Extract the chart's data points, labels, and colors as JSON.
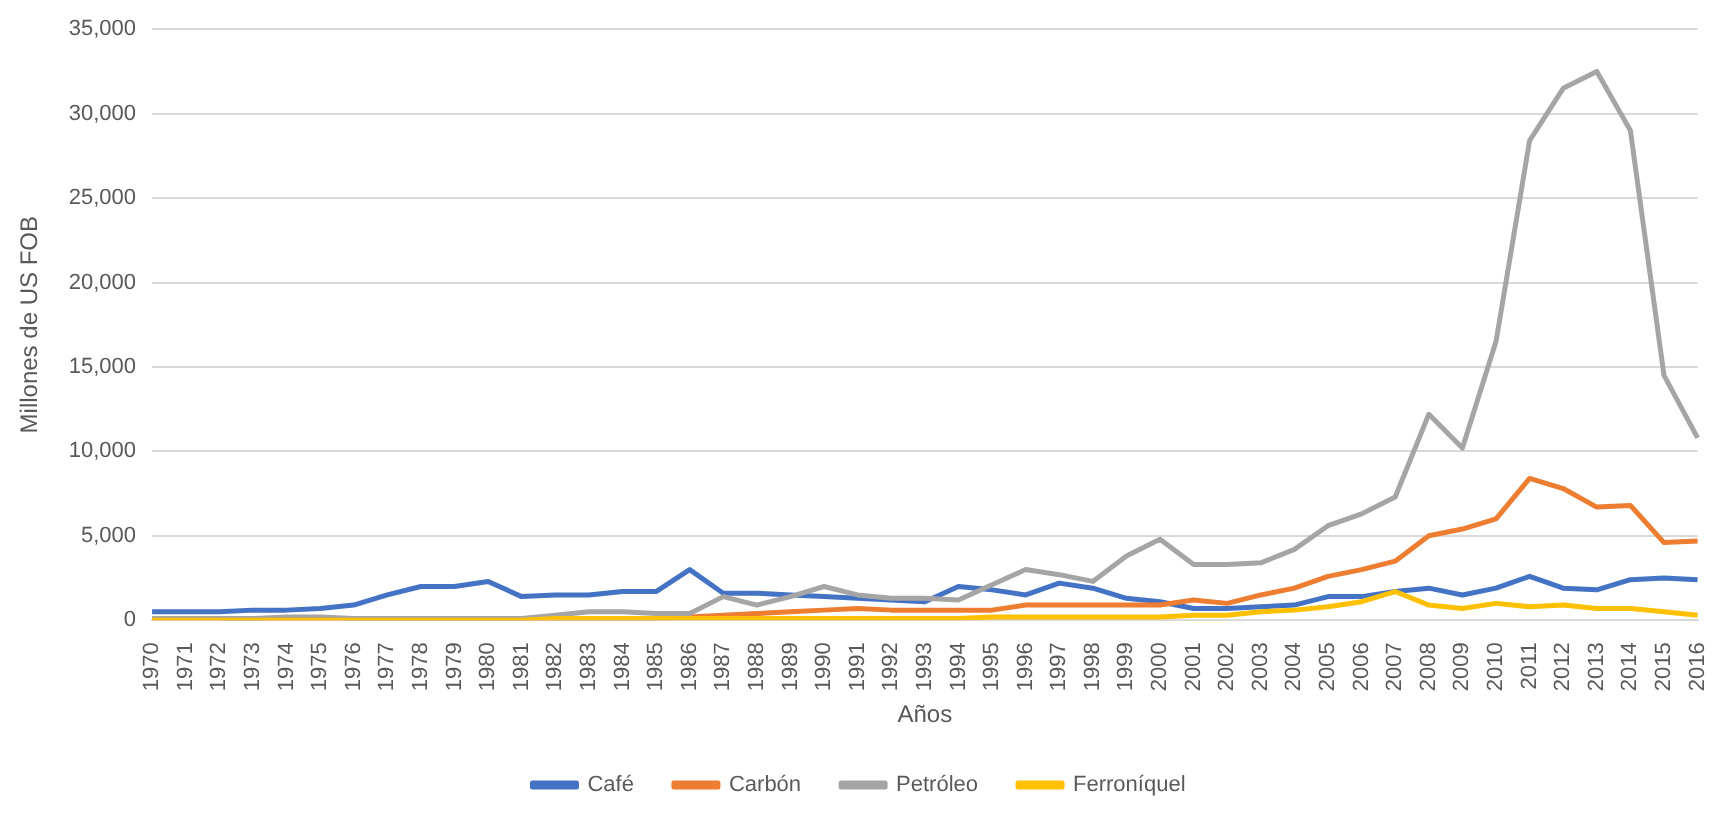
{
  "chart_data": {
    "type": "line",
    "xlabel": "Años",
    "ylabel": "Millones de US FOB",
    "categories": [
      "1970",
      "1971",
      "1972",
      "1973",
      "1974",
      "1975",
      "1976",
      "1977",
      "1978",
      "1979",
      "1980",
      "1981",
      "1982",
      "1983",
      "1984",
      "1985",
      "1986",
      "1987",
      "1988",
      "1989",
      "1990",
      "1991",
      "1992",
      "1993",
      "1994",
      "1995",
      "1996",
      "1997",
      "1998",
      "1999",
      "2000",
      "2001",
      "2002",
      "2003",
      "2004",
      "2005",
      "2006",
      "2007",
      "2008",
      "2009",
      "2010",
      "2011",
      "2012",
      "2013",
      "2014",
      "2015",
      "2016"
    ],
    "series": [
      {
        "name": "Café",
        "color": "#4472c4",
        "values": [
          500,
          500,
          500,
          600,
          600,
          700,
          900,
          1500,
          2000,
          2000,
          2300,
          1400,
          1500,
          1500,
          1700,
          1700,
          3000,
          1600,
          1600,
          1500,
          1400,
          1300,
          1200,
          1100,
          2000,
          1800,
          1500,
          2200,
          1900,
          1300,
          1100,
          700,
          700,
          800,
          900,
          1400,
          1400,
          1700,
          1900,
          1500,
          1900,
          2600,
          1900,
          1800,
          2400,
          2500,
          2400
        ]
      },
      {
        "name": "Carbón",
        "color": "#ed7d31",
        "values": [
          null,
          null,
          100,
          100,
          100,
          100,
          100,
          100,
          100,
          100,
          100,
          100,
          100,
          100,
          100,
          100,
          200,
          300,
          400,
          500,
          600,
          700,
          600,
          600,
          600,
          600,
          900,
          900,
          900,
          900,
          900,
          1200,
          1000,
          1500,
          1900,
          2600,
          3000,
          3500,
          5000,
          5400,
          6000,
          8400,
          7800,
          6700,
          6800,
          4600,
          4700
        ]
      },
      {
        "name": "Petróleo",
        "color": "#a5a5a5",
        "values": [
          100,
          100,
          100,
          100,
          200,
          200,
          100,
          100,
          100,
          100,
          100,
          100,
          300,
          500,
          500,
          400,
          400,
          1400,
          900,
          1400,
          2000,
          1500,
          1300,
          1300,
          1200,
          2100,
          3000,
          2700,
          2300,
          3800,
          4800,
          3300,
          3300,
          3400,
          4200,
          5600,
          6300,
          7300,
          12200,
          10200,
          16500,
          28400,
          31500,
          32500,
          29000,
          14500,
          10800
        ]
      },
      {
        "name": "Ferroníquel",
        "color": "#ffc000",
        "values": [
          0,
          0,
          0,
          0,
          0,
          0,
          0,
          0,
          0,
          0,
          0,
          0,
          100,
          100,
          100,
          100,
          100,
          100,
          100,
          100,
          100,
          100,
          100,
          100,
          100,
          200,
          200,
          200,
          200,
          200,
          200,
          300,
          300,
          500,
          600,
          800,
          1100,
          1700,
          900,
          700,
          1000,
          800,
          900,
          700,
          700,
          500,
          300
        ]
      }
    ],
    "ylim": [
      0,
      35000
    ],
    "yticks": [
      0,
      {
        "value": 5000,
        "label": "5,000"
      },
      {
        "value": 10000,
        "label": "10,000"
      },
      {
        "value": 15000,
        "label": "15,000"
      },
      {
        "value": 20000,
        "label": "20,000"
      },
      {
        "value": 25000,
        "label": "25,000"
      },
      {
        "value": 30000,
        "label": "30,000"
      },
      {
        "value": 35000,
        "label": "35,000"
      }
    ],
    "grid": "y",
    "legend": "bottom",
    "marker": "none",
    "line_style": "solid"
  }
}
